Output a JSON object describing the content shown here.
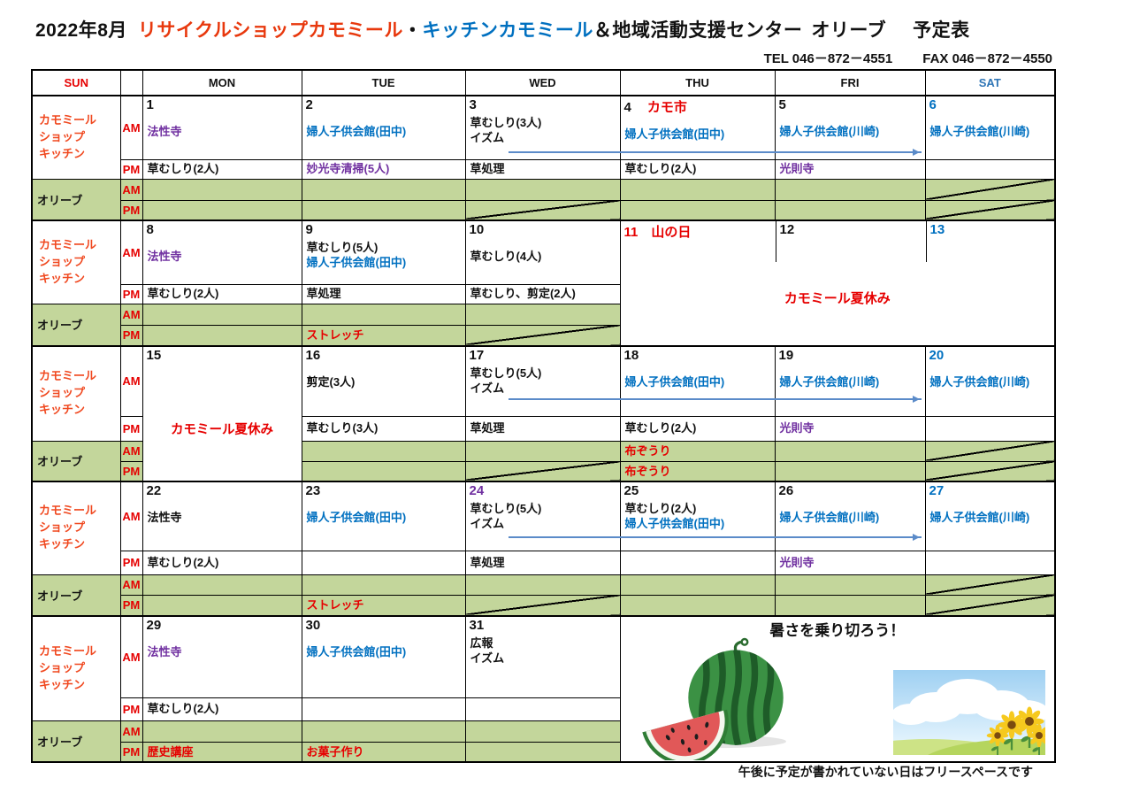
{
  "title": {
    "year_month": "2022年8月",
    "shop_name": "リサイクルショップカモミール",
    "separator": "・",
    "kitchen_name": "キッチンカモミール",
    "center_name": "＆地域活動支援センター",
    "olive_name": "オリーブ",
    "doc_type": "予定表"
  },
  "contact": {
    "tel": "TEL 046－872－4551",
    "fax": "FAX 046－872－4550"
  },
  "weekday_header": [
    {
      "label": "SUN",
      "color": "red"
    },
    {
      "label": "",
      "color": "black"
    },
    {
      "label": "MON",
      "color": "black"
    },
    {
      "label": "TUE",
      "color": "black"
    },
    {
      "label": "WED",
      "color": "black"
    },
    {
      "label": "THU",
      "color": "black"
    },
    {
      "label": "FRI",
      "color": "black"
    },
    {
      "label": "SAT",
      "color": "satblue"
    }
  ],
  "row_labels": {
    "camomile_lines": [
      "カモミール",
      "ショップ",
      "キッチン"
    ],
    "olive": "オリーブ",
    "am": "AM",
    "pm": "PM"
  },
  "colors": {
    "black": "#111111",
    "red": "#e60000",
    "orange": "#f0481f",
    "blue": "#0070c0",
    "satblue": "#2e75b6",
    "purple": "#7030a0",
    "olive_bg": "#c3d69b",
    "arrow_blue": "#5b8bc9"
  },
  "footer": {
    "note": "午後に予定が書かれていない日はフリースペースです"
  },
  "weeks": [
    {
      "continuation_arrow": true,
      "am": [
        {
          "date": "1",
          "lines": [
            {
              "t": "法性寺",
              "c": "purple"
            }
          ]
        },
        {
          "date": "2",
          "lines": [
            {
              "t": "婦人子供会館(田中)",
              "c": "blue"
            }
          ]
        },
        {
          "date": "3",
          "lines": [
            {
              "t": "草むしり(3人)",
              "c": "black"
            },
            {
              "t": "イズム",
              "c": "black"
            }
          ]
        },
        {
          "date": "4",
          "suffix": {
            "t": "カモ市",
            "c": "red"
          },
          "lines": [
            {
              "t": "婦人子供会館(田中)",
              "c": "blue"
            }
          ]
        },
        {
          "date": "5",
          "lines": [
            {
              "t": "婦人子供会館(川崎)",
              "c": "blue"
            }
          ]
        },
        {
          "date": "6",
          "date_c": "blue",
          "lines": [
            {
              "t": "婦人子供会館(川崎)",
              "c": "blue"
            }
          ]
        }
      ],
      "pm": [
        {
          "lines": [
            {
              "t": "草むしり(2人)",
              "c": "black"
            }
          ]
        },
        {
          "lines": [
            {
              "t": "妙光寺清掃(5人)",
              "c": "purple"
            }
          ]
        },
        {
          "lines": [
            {
              "t": "草処理",
              "c": "black"
            }
          ]
        },
        {
          "lines": [
            {
              "t": "草むしり(2人)",
              "c": "black"
            }
          ]
        },
        {
          "lines": [
            {
              "t": "光則寺",
              "c": "purple"
            }
          ]
        },
        {}
      ],
      "oam": [
        {},
        {},
        {},
        {},
        {},
        {
          "closed": true
        }
      ],
      "opm": [
        {},
        {},
        {
          "closed": true
        },
        {},
        {},
        {
          "closed": true
        }
      ]
    },
    {
      "am": [
        {
          "date": "8",
          "lines": [
            {
              "t": "法性寺",
              "c": "purple"
            }
          ]
        },
        {
          "date": "9",
          "lines": [
            {
              "t": "草むしり(5人)",
              "c": "black"
            },
            {
              "t": "婦人子供会館(田中)",
              "c": "blue"
            }
          ]
        },
        {
          "date": "10",
          "lines": [
            {
              "t": "草むしり(4人)",
              "c": "black"
            }
          ]
        },
        {
          "merge": "holiday",
          "dates": [
            {
              "t": "11",
              "c": "red",
              "suffix": "山の日"
            },
            {
              "t": "12",
              "c": "black"
            },
            {
              "t": "13",
              "c": "blue"
            }
          ],
          "text": "カモミール夏休み",
          "text_c": "red"
        }
      ],
      "pm": [
        {
          "lines": [
            {
              "t": "草むしり(2人)",
              "c": "black"
            }
          ]
        },
        {
          "lines": [
            {
              "t": "草処理",
              "c": "black"
            }
          ]
        },
        {
          "lines": [
            {
              "t": "草むしり、剪定(2人)",
              "c": "black"
            }
          ]
        }
      ],
      "oam": [
        {},
        {},
        {}
      ],
      "opm": [
        {},
        {
          "lines": [
            {
              "t": "ストレッチ",
              "c": "red"
            }
          ]
        },
        {
          "closed": true
        }
      ]
    },
    {
      "continuation_arrow": true,
      "am": [
        {
          "merge": "vacation",
          "date": "15",
          "text": "カモミール夏休み",
          "text_c": "red"
        },
        {
          "date": "16",
          "lines": [
            {
              "t": "剪定(3人)",
              "c": "black"
            }
          ]
        },
        {
          "date": "17",
          "lines": [
            {
              "t": "草むしり(5人)",
              "c": "black"
            },
            {
              "t": "イズム",
              "c": "black"
            }
          ]
        },
        {
          "date": "18",
          "lines": [
            {
              "t": "婦人子供会館(田中)",
              "c": "blue"
            }
          ]
        },
        {
          "date": "19",
          "lines": [
            {
              "t": "婦人子供会館(川崎)",
              "c": "blue"
            }
          ]
        },
        {
          "date": "20",
          "date_c": "blue",
          "lines": [
            {
              "t": "婦人子供会館(川崎)",
              "c": "blue"
            }
          ]
        }
      ],
      "pm": [
        {
          "lines": [
            {
              "t": "草むしり(3人)",
              "c": "black"
            }
          ]
        },
        {
          "lines": [
            {
              "t": "草処理",
              "c": "black"
            }
          ]
        },
        {
          "lines": [
            {
              "t": "草むしり(2人)",
              "c": "black"
            }
          ]
        },
        {
          "lines": [
            {
              "t": "光則寺",
              "c": "purple"
            }
          ]
        },
        {}
      ],
      "oam": [
        {},
        {},
        {
          "lines": [
            {
              "t": "布ぞうり",
              "c": "red"
            }
          ]
        },
        {},
        {
          "closed": true
        }
      ],
      "opm": [
        {},
        {
          "closed": true
        },
        {
          "lines": [
            {
              "t": "布ぞうり",
              "c": "red"
            }
          ]
        },
        {},
        {
          "closed": true
        }
      ]
    },
    {
      "continuation_arrow": true,
      "am": [
        {
          "date": "22",
          "lines": [
            {
              "t": "法性寺",
              "c": "black"
            }
          ]
        },
        {
          "date": "23",
          "lines": [
            {
              "t": "婦人子供会館(田中)",
              "c": "blue"
            }
          ]
        },
        {
          "date": "24",
          "date_c": "purple",
          "lines": [
            {
              "t": "草むしり(5人)",
              "c": "black"
            },
            {
              "t": "イズム",
              "c": "black"
            }
          ]
        },
        {
          "date": "25",
          "lines": [
            {
              "t": "草むしり(2人)",
              "c": "black"
            },
            {
              "t": "婦人子供会館(田中)",
              "c": "blue"
            }
          ]
        },
        {
          "date": "26",
          "lines": [
            {
              "t": "婦人子供会館(川崎)",
              "c": "blue"
            }
          ]
        },
        {
          "date": "27",
          "date_c": "blue",
          "lines": [
            {
              "t": "婦人子供会館(川崎)",
              "c": "blue"
            }
          ]
        }
      ],
      "pm": [
        {
          "lines": [
            {
              "t": "草むしり(2人)",
              "c": "black"
            }
          ]
        },
        {},
        {
          "lines": [
            {
              "t": "草処理",
              "c": "black"
            }
          ]
        },
        {},
        {
          "lines": [
            {
              "t": "光則寺",
              "c": "purple"
            }
          ]
        },
        {}
      ],
      "oam": [
        {},
        {},
        {},
        {},
        {},
        {
          "closed": true
        }
      ],
      "opm": [
        {},
        {
          "lines": [
            {
              "t": "ストレッチ",
              "c": "red"
            }
          ]
        },
        {
          "closed": true
        },
        {},
        {},
        {
          "closed": true
        }
      ]
    },
    {
      "am": [
        {
          "date": "29",
          "lines": [
            {
              "t": "法性寺",
              "c": "purple"
            }
          ]
        },
        {
          "date": "30",
          "lines": [
            {
              "t": "婦人子供会館(田中)",
              "c": "blue"
            }
          ]
        },
        {
          "date": "31",
          "lines": [
            {
              "t": "広報",
              "c": "black"
            },
            {
              "t": "イズム",
              "c": "black"
            }
          ]
        },
        {
          "merge": "summer",
          "headline": "暑さを乗り切ろう！"
        }
      ],
      "pm": [
        {
          "lines": [
            {
              "t": "草むしり(2人)",
              "c": "black"
            }
          ]
        },
        {},
        {}
      ],
      "oam": [
        {},
        {},
        {}
      ],
      "opm": [
        {
          "lines": [
            {
              "t": "歴史講座",
              "c": "red"
            }
          ]
        },
        {
          "lines": [
            {
              "t": "お菓子作り",
              "c": "red"
            }
          ]
        },
        {}
      ]
    }
  ]
}
